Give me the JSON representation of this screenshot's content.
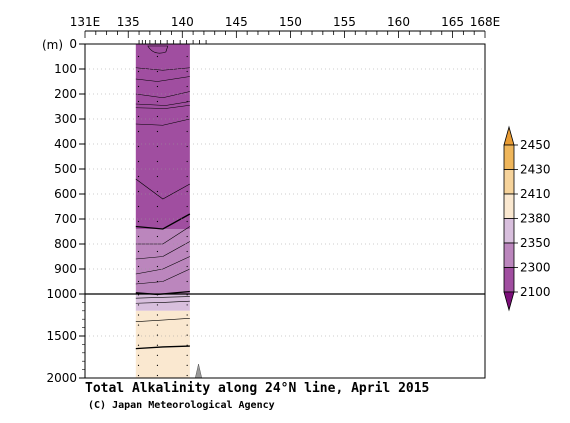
{
  "chart_data": {
    "type": "heatmap",
    "title": "Total Alkalinity along 24°N line, April 2015",
    "credit": "(C) Japan Meteorological Agency",
    "xlabel": "",
    "ylabel": "(m)",
    "x_ticks": [
      {
        "label": "131E",
        "value": 131
      },
      {
        "label": "135",
        "value": 135
      },
      {
        "label": "140",
        "value": 140
      },
      {
        "label": "145",
        "value": 145
      },
      {
        "label": "150",
        "value": 150
      },
      {
        "label": "155",
        "value": 155
      },
      {
        "label": "160",
        "value": 160
      },
      {
        "label": "165",
        "value": 165
      },
      {
        "label": "168E",
        "value": 168
      }
    ],
    "xlim": [
      131,
      168
    ],
    "ylim_upper": [
      0,
      1000
    ],
    "ylim_lower": [
      1000,
      2000
    ],
    "y_ticks": [
      0,
      100,
      200,
      300,
      400,
      500,
      600,
      700,
      800,
      900,
      1000,
      1500,
      2000
    ],
    "data_extent": {
      "lon": [
        135.7,
        140.7
      ],
      "depth": [
        0,
        2000
      ]
    },
    "color_levels": [
      {
        "range": "< 2100",
        "color": "#7c0e7a"
      },
      {
        "range": "2100-2300",
        "color": "#a04ea0"
      },
      {
        "range": "2300-2350",
        "color": "#bb86bd"
      },
      {
        "range": "2350-2380",
        "color": "#d8bfdd"
      },
      {
        "range": "2380-2410",
        "color": "#fae8d0"
      },
      {
        "range": "2410-2430",
        "color": "#f6d39b"
      },
      {
        "range": "2430-2450",
        "color": "#efb65b"
      },
      {
        "range": "> 2450",
        "color": "#e89b33"
      }
    ],
    "colorbar_labels": [
      "2450",
      "2430",
      "2410",
      "2380",
      "2350",
      "2300",
      "2100"
    ],
    "zones": [
      {
        "range": "2100-2300",
        "depth_top": 0,
        "depth_bottom": 740
      },
      {
        "range": "2300-2350",
        "depth_top": 740,
        "depth_bottom": 1000
      },
      {
        "range": "2350-2380",
        "depth_top": 1000,
        "depth_bottom": 1200
      },
      {
        "range": "2380-2410",
        "depth_top": 1200,
        "depth_bottom": 2000
      }
    ]
  }
}
